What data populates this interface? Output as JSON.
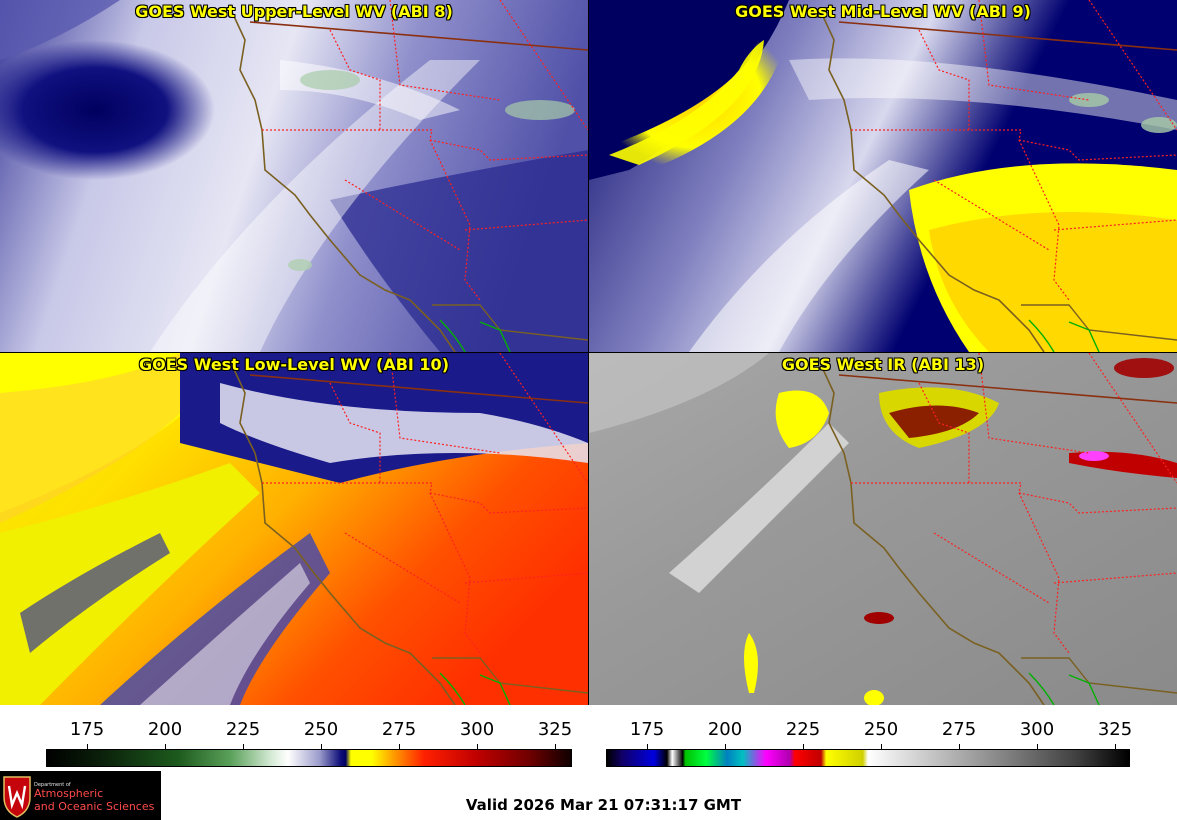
{
  "panels": [
    {
      "title": "GOES West Upper-Level WV (ABI 8)"
    },
    {
      "title": "GOES West Mid-Level WV (ABI 9)"
    },
    {
      "title": "GOES West Low-Level WV (ABI 10)"
    },
    {
      "title": "GOES West IR (ABI 13)"
    }
  ],
  "colorbar_ticks": [
    "175",
    "200",
    "225",
    "250",
    "275",
    "300",
    "325"
  ],
  "footer": {
    "valid_time": "Valid 2026 Mar 21 07:31:17 GMT"
  },
  "logo": {
    "department": "Department of",
    "line1": "Atmospheric",
    "line2": "and Oceanic Sciences"
  },
  "colors": {
    "title_text": "#ffff00",
    "state_borders": "#ff2020",
    "coastline": "#806020",
    "mexico_border": "#00c000"
  }
}
